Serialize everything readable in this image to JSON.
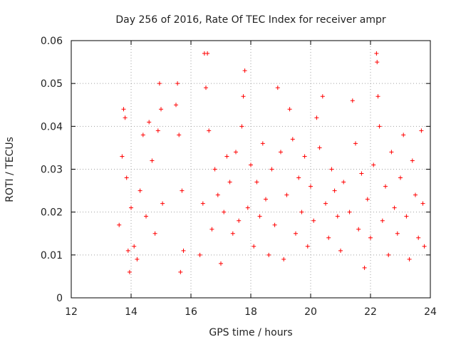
{
  "colors": {
    "points": "#ff0000",
    "grid": "#a0a0a0",
    "axis": "#000000"
  },
  "chart_data": {
    "type": "scatter",
    "title": "Day 256 of 2016, Rate Of TEC Index for receiver ampr",
    "xlabel": "GPS time / hours",
    "ylabel": "ROTI / TECUs",
    "xlim": [
      12,
      24
    ],
    "ylim": [
      0,
      0.06
    ],
    "xticks": [
      12,
      14,
      16,
      18,
      20,
      22,
      24
    ],
    "xtick_labels": [
      "12",
      "14",
      "16",
      "18",
      "20",
      "22",
      "24"
    ],
    "yticks": [
      0,
      0.01,
      0.02,
      0.03,
      0.04,
      0.05,
      0.06
    ],
    "ytick_labels": [
      "0",
      "0.01",
      "0.02",
      "0.03",
      "0.04",
      "0.05",
      "0.06"
    ],
    "grid": true,
    "marker": "+",
    "series": [
      {
        "name": "ROTI",
        "points": [
          [
            13.6,
            0.017
          ],
          [
            13.7,
            0.033
          ],
          [
            13.75,
            0.044
          ],
          [
            13.8,
            0.042
          ],
          [
            13.85,
            0.028
          ],
          [
            13.9,
            0.011
          ],
          [
            13.95,
            0.006
          ],
          [
            14.0,
            0.021
          ],
          [
            14.1,
            0.012
          ],
          [
            14.2,
            0.009
          ],
          [
            14.3,
            0.025
          ],
          [
            14.4,
            0.038
          ],
          [
            14.5,
            0.019
          ],
          [
            14.6,
            0.041
          ],
          [
            14.7,
            0.032
          ],
          [
            14.8,
            0.015
          ],
          [
            14.9,
            0.039
          ],
          [
            14.95,
            0.05
          ],
          [
            15.0,
            0.044
          ],
          [
            15.05,
            0.022
          ],
          [
            15.5,
            0.045
          ],
          [
            15.55,
            0.05
          ],
          [
            15.6,
            0.038
          ],
          [
            15.65,
            0.006
          ],
          [
            15.7,
            0.025
          ],
          [
            15.75,
            0.011
          ],
          [
            16.3,
            0.01
          ],
          [
            16.4,
            0.022
          ],
          [
            16.45,
            0.057
          ],
          [
            16.5,
            0.049
          ],
          [
            16.55,
            0.057
          ],
          [
            16.6,
            0.039
          ],
          [
            16.7,
            0.016
          ],
          [
            16.8,
            0.03
          ],
          [
            16.9,
            0.024
          ],
          [
            17.0,
            0.008
          ],
          [
            17.1,
            0.02
          ],
          [
            17.2,
            0.033
          ],
          [
            17.3,
            0.027
          ],
          [
            17.4,
            0.015
          ],
          [
            17.5,
            0.034
          ],
          [
            17.6,
            0.018
          ],
          [
            17.7,
            0.04
          ],
          [
            17.75,
            0.047
          ],
          [
            17.8,
            0.053
          ],
          [
            17.9,
            0.021
          ],
          [
            18.0,
            0.031
          ],
          [
            18.1,
            0.012
          ],
          [
            18.2,
            0.027
          ],
          [
            18.3,
            0.019
          ],
          [
            18.4,
            0.036
          ],
          [
            18.5,
            0.023
          ],
          [
            18.6,
            0.01
          ],
          [
            18.7,
            0.03
          ],
          [
            18.8,
            0.017
          ],
          [
            18.9,
            0.049
          ],
          [
            19.0,
            0.034
          ],
          [
            19.1,
            0.009
          ],
          [
            19.2,
            0.024
          ],
          [
            19.3,
            0.044
          ],
          [
            19.4,
            0.037
          ],
          [
            19.5,
            0.015
          ],
          [
            19.6,
            0.028
          ],
          [
            19.7,
            0.02
          ],
          [
            19.8,
            0.033
          ],
          [
            19.9,
            0.012
          ],
          [
            20.0,
            0.026
          ],
          [
            20.1,
            0.018
          ],
          [
            20.2,
            0.042
          ],
          [
            20.3,
            0.035
          ],
          [
            20.4,
            0.047
          ],
          [
            20.5,
            0.022
          ],
          [
            20.6,
            0.014
          ],
          [
            20.7,
            0.03
          ],
          [
            20.8,
            0.025
          ],
          [
            20.9,
            0.019
          ],
          [
            21.0,
            0.011
          ],
          [
            21.1,
            0.027
          ],
          [
            21.3,
            0.02
          ],
          [
            21.4,
            0.046
          ],
          [
            21.5,
            0.036
          ],
          [
            21.6,
            0.016
          ],
          [
            21.7,
            0.029
          ],
          [
            21.8,
            0.007
          ],
          [
            21.9,
            0.023
          ],
          [
            22.0,
            0.014
          ],
          [
            22.1,
            0.031
          ],
          [
            22.2,
            0.057
          ],
          [
            22.22,
            0.055
          ],
          [
            22.25,
            0.047
          ],
          [
            22.3,
            0.04
          ],
          [
            22.4,
            0.018
          ],
          [
            22.5,
            0.026
          ],
          [
            22.6,
            0.01
          ],
          [
            22.7,
            0.034
          ],
          [
            22.8,
            0.021
          ],
          [
            22.9,
            0.015
          ],
          [
            23.0,
            0.028
          ],
          [
            23.1,
            0.038
          ],
          [
            23.2,
            0.019
          ],
          [
            23.3,
            0.009
          ],
          [
            23.4,
            0.032
          ],
          [
            23.5,
            0.024
          ],
          [
            23.6,
            0.014
          ],
          [
            23.7,
            0.039
          ],
          [
            23.75,
            0.022
          ],
          [
            23.8,
            0.012
          ]
        ]
      }
    ]
  }
}
